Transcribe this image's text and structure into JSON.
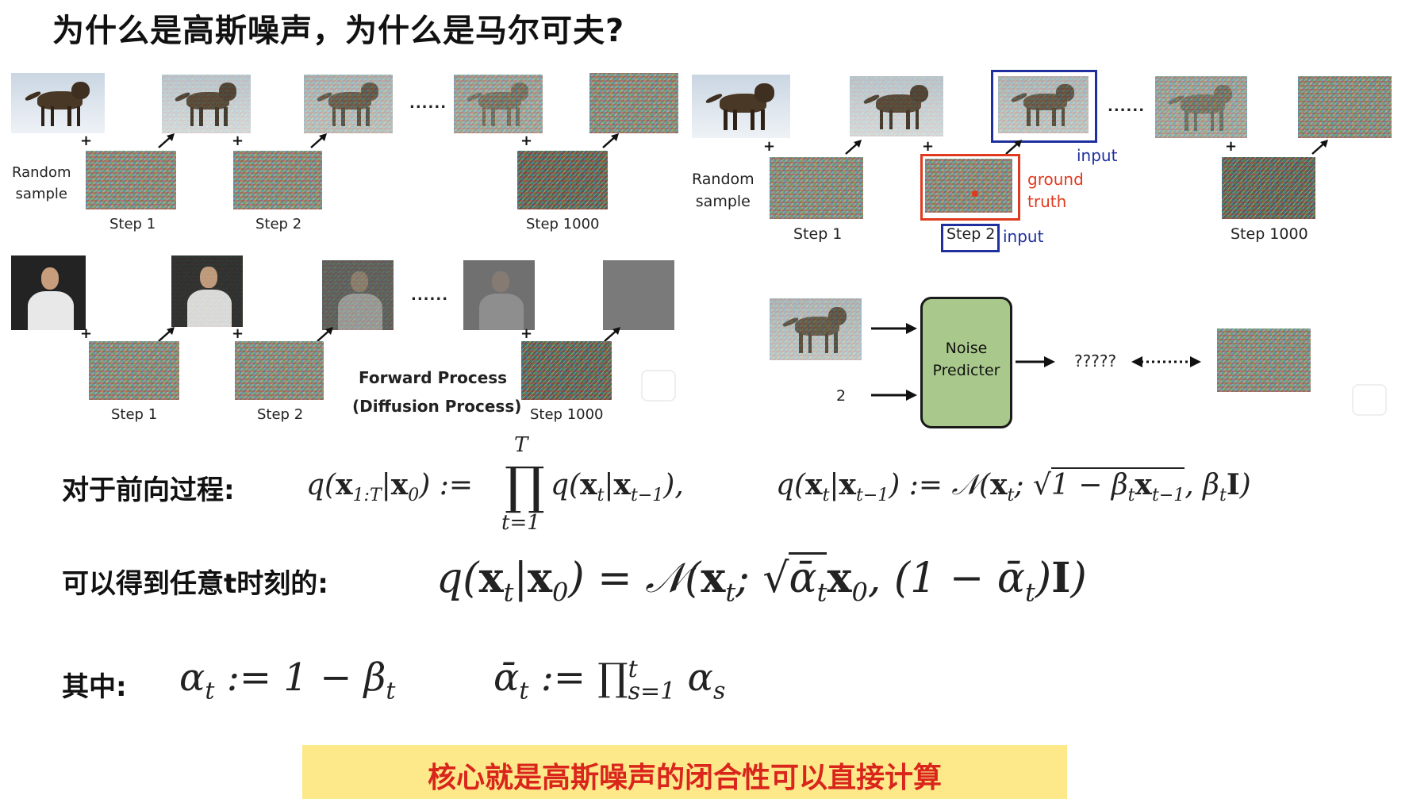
{
  "title": "为什么是高斯噪声，为什么是马尔可夫?",
  "left_diagram": {
    "random_sample": "Random\nsample",
    "steps": [
      "Step 1",
      "Step 2",
      "Step 1000"
    ],
    "ellipsis": "......",
    "bottom_steps": [
      "Step 1",
      "Step 2",
      "Step 1000"
    ],
    "forward_process": "Forward Process",
    "diffusion_process": "(Diffusion Process)"
  },
  "right_diagram": {
    "random_sample": "Random\nsample",
    "steps": [
      "Step 1",
      "Step 2",
      "Step 1000"
    ],
    "ellipsis": "......",
    "input_label": "input",
    "ground_truth": "ground\ntruth",
    "input_label_2": "input",
    "noise_predicter": "Noise\nPredicter",
    "step_input": "2",
    "unknown": "?????"
  },
  "equations": {
    "forward_label": "对于前向过程:",
    "any_t_label": "可以得到任意t时刻的:",
    "where_label": "其中:"
  },
  "banner": "核心就是高斯噪声的闭合性可以直接计算",
  "colors": {
    "red": "#e03a1e",
    "blue": "#1f2f9e",
    "green": "#a9c98c",
    "banner": "#fde98a"
  }
}
